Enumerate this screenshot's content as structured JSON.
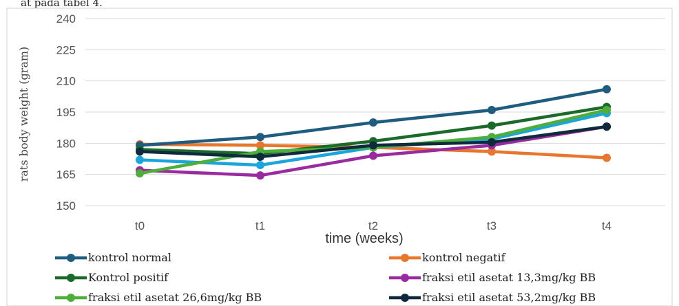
{
  "top_fragment": "at pada tabel 4.",
  "chart_data": {
    "type": "line",
    "title": "",
    "xlabel": "time (weeks)",
    "ylabel": "rats body weight (gram)",
    "categories": [
      "t0",
      "t1",
      "t2",
      "t3",
      "t4"
    ],
    "ylim": [
      150,
      240
    ],
    "yticks": [
      150,
      165,
      180,
      195,
      210,
      225,
      240
    ],
    "grid": true,
    "legend_position": "bottom",
    "series": [
      {
        "name": "kontrol normal",
        "color": "#1f5d80",
        "values": [
          179,
          183,
          190,
          196,
          206
        ]
      },
      {
        "name": "kontrol negatif",
        "color": "#e8762d",
        "values": [
          179.5,
          179,
          178,
          176,
          173
        ]
      },
      {
        "name": "Kontrol positif",
        "color": "#1a6a2a",
        "values": [
          177,
          175,
          181,
          188.5,
          197.5
        ]
      },
      {
        "name": "fraksi etil asetat 13,3mg/kg BB",
        "color": "#9a2aa0",
        "values": [
          167,
          164.5,
          174,
          179,
          188
        ]
      },
      {
        "name": "fraksi etil asetat 26,6mg/kg BB",
        "color": "#4eae3a",
        "values": [
          165.5,
          176,
          178,
          183,
          196
        ]
      },
      {
        "name": "fraksi etil asetat 53,2mg/kg BB",
        "color": "#0f2a3c",
        "values": [
          176,
          173.5,
          179,
          180.5,
          188
        ]
      },
      {
        "name": "",
        "color": "#1aa5dc",
        "values": [
          172,
          169.5,
          178,
          182,
          194.5
        ]
      }
    ]
  }
}
